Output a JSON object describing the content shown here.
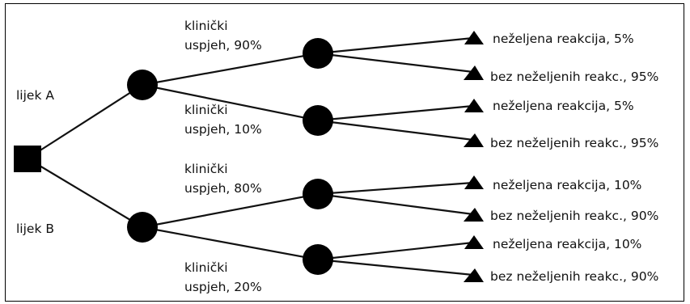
{
  "decision_tree": {
    "options": [
      {
        "name": "lijek A",
        "branches": [
          {
            "label": "klinički\nuspjeh, 90%",
            "outcomes": [
              "neželjena reakcija, 5%",
              "bez neželjenih reakc., 95%"
            ]
          },
          {
            "label": "klinički\nuspjeh, 10%",
            "outcomes": [
              "neželjena reakcija, 5%",
              "bez neželjenih reakc., 95%"
            ]
          }
        ]
      },
      {
        "name": "lijek B",
        "branches": [
          {
            "label": "klinički\nuspjeh, 80%",
            "outcomes": [
              "neželjena reakcija, 10%",
              "bez neželjenih reakc., 90%"
            ]
          },
          {
            "label": "klinički\nuspjeh, 20%",
            "outcomes": [
              "neželjena reakcija, 10%",
              "bez neželjenih reakc., 90%"
            ]
          }
        ]
      }
    ],
    "colors": {
      "ink": "#111111",
      "node": "#000000"
    }
  }
}
